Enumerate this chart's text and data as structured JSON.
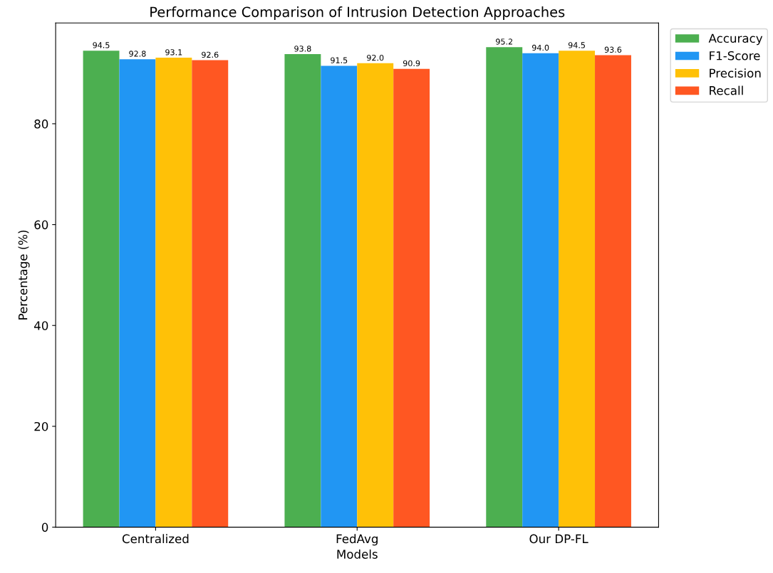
{
  "chart_data": {
    "type": "bar",
    "title": "Performance Comparison of Intrusion Detection Approaches",
    "xlabel": "Models",
    "ylabel": "Percentage (%)",
    "categories": [
      "Centralized",
      "FedAvg",
      "Our DP-FL"
    ],
    "series": [
      {
        "name": "Accuracy",
        "color": "#4caf50",
        "values": [
          94.5,
          93.8,
          95.2
        ],
        "value_labels": [
          "94.5",
          "93.8",
          "95.2"
        ]
      },
      {
        "name": "F1-Score",
        "color": "#2196f3",
        "values": [
          92.8,
          91.5,
          94.0
        ],
        "value_labels": [
          "92.8",
          "91.5",
          "94.0"
        ]
      },
      {
        "name": "Precision",
        "color": "#ffc107",
        "values": [
          93.1,
          92.0,
          94.5
        ],
        "value_labels": [
          "93.1",
          "92.0",
          "94.5"
        ]
      },
      {
        "name": "Recall",
        "color": "#ff5722",
        "values": [
          92.6,
          90.9,
          93.6
        ],
        "value_labels": [
          "92.6",
          "90.9",
          "93.6"
        ]
      }
    ],
    "ylim": [
      0,
      100
    ],
    "yticks": [
      0,
      20,
      40,
      60,
      80
    ],
    "legend": "top right",
    "grid": false
  }
}
